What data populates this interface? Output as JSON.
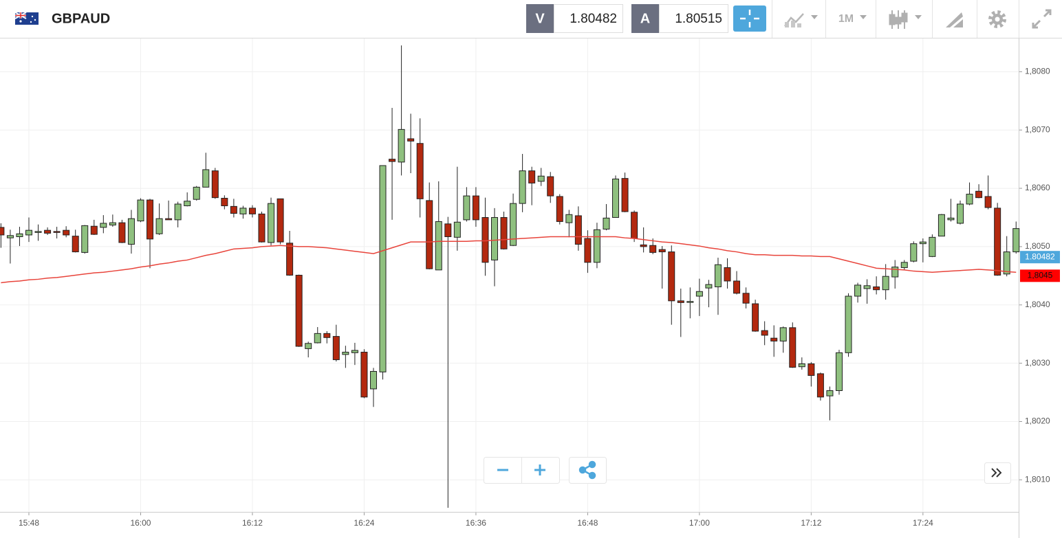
{
  "toolbar": {
    "symbol": "GBPAUD",
    "bid_tag": "V",
    "bid": 1.80482,
    "ask_tag": "A",
    "ask": 1.80515,
    "timeframe": "1M"
  },
  "chart_data": {
    "type": "candlestick",
    "up_color": "#8fc07f",
    "down_color": "#b3290f",
    "categories": [
      null,
      null,
      null,
      "15:48",
      null,
      null,
      null,
      null,
      null,
      null,
      null,
      null,
      null,
      null,
      null,
      "16:00",
      null,
      null,
      null,
      null,
      null,
      null,
      null,
      null,
      null,
      null,
      null,
      "16:12",
      null,
      null,
      null,
      null,
      null,
      null,
      null,
      null,
      null,
      null,
      null,
      "16:24",
      null,
      null,
      null,
      null,
      null,
      null,
      null,
      null,
      null,
      null,
      null,
      "16:36",
      null,
      null,
      null,
      null,
      null,
      null,
      null,
      null,
      null,
      null,
      null,
      "16:48",
      null,
      null,
      null,
      null,
      null,
      null,
      null,
      null,
      null,
      null,
      null,
      "17:00",
      null,
      null,
      null,
      null,
      null,
      null,
      null,
      null,
      null,
      null,
      null,
      "17:12",
      null,
      null,
      null,
      null,
      null,
      null,
      null,
      null,
      null,
      null,
      null,
      "17:24",
      null,
      null,
      null,
      null,
      null,
      null,
      null,
      null,
      null,
      null
    ],
    "open": [
      1.80533,
      1.80515,
      1.80517,
      1.8052,
      1.80525,
      1.80528,
      1.80526,
      1.80528,
      1.80518,
      1.8049,
      1.80535,
      1.80533,
      1.80537,
      1.80541,
      1.80504,
      1.80544,
      1.8058,
      1.80522,
      1.80548,
      1.80546,
      1.8057,
      1.80581,
      1.80602,
      1.8063,
      1.80583,
      1.80569,
      1.80556,
      1.80566,
      1.80556,
      1.80507,
      1.80582,
      1.80506,
      1.80451,
      1.80325,
      1.80335,
      1.80351,
      1.80346,
      1.80315,
      1.80318,
      1.80319,
      1.80256,
      1.80285,
      1.8065,
      1.80645,
      1.80685,
      1.80677,
      1.80579,
      1.8046,
      1.80539,
      1.80516,
      1.80546,
      1.80587,
      1.8055,
      1.80477,
      1.8055,
      1.80502,
      1.80574,
      1.8063,
      1.80612,
      1.8062,
      1.80586,
      1.80541,
      1.80553,
      1.80514,
      1.80473,
      1.8053,
      1.8055,
      1.80617,
      1.80559,
      1.80503,
      1.80502,
      1.80495,
      1.80491,
      1.80407,
      1.80405,
      1.80415,
      1.80429,
      1.80431,
      1.80464,
      1.80441,
      1.8042,
      1.80402,
      1.80356,
      1.80343,
      1.80338,
      1.80361,
      1.80294,
      1.80299,
      1.80282,
      1.80244,
      1.80253,
      1.80318,
      1.80415,
      1.80428,
      1.80431,
      1.80426,
      1.80448,
      1.80464,
      1.80475,
      1.80505,
      1.80483,
      1.80518,
      1.80546,
      1.8054,
      1.80573,
      1.80595,
      1.80586,
      1.80566,
      1.80453,
      1.80491
    ],
    "high": [
      1.8054,
      1.80529,
      1.80534,
      1.8055,
      1.80538,
      1.80533,
      1.80534,
      1.80535,
      1.80529,
      1.80537,
      1.80546,
      1.80554,
      1.80555,
      1.80546,
      1.80563,
      1.80583,
      1.80582,
      1.80574,
      1.80579,
      1.80577,
      1.80593,
      1.80604,
      1.80661,
      1.80635,
      1.80588,
      1.80582,
      1.8057,
      1.80571,
      1.8056,
      1.80584,
      1.80582,
      1.80527,
      1.80452,
      1.80337,
      1.80362,
      1.80355,
      1.80366,
      1.8033,
      1.80335,
      1.80324,
      1.80292,
      1.80639,
      1.80738,
      1.80845,
      1.80728,
      1.8072,
      1.8061,
      1.80612,
      1.80551,
      1.80637,
      1.80602,
      1.80602,
      1.80584,
      1.80566,
      1.8056,
      1.80591,
      1.80659,
      1.80637,
      1.80635,
      1.80628,
      1.8059,
      1.80563,
      1.80569,
      1.80528,
      1.80541,
      1.80573,
      1.80622,
      1.80627,
      1.80562,
      1.80533,
      1.80514,
      1.80501,
      1.80502,
      1.80428,
      1.8043,
      1.80445,
      1.80443,
      1.80481,
      1.8048,
      1.80458,
      1.8043,
      1.80409,
      1.80372,
      1.80365,
      1.80363,
      1.8037,
      1.8031,
      1.80302,
      1.80284,
      1.8026,
      1.80323,
      1.8042,
      1.80438,
      1.80444,
      1.80449,
      1.8047,
      1.80477,
      1.80477,
      1.80509,
      1.80514,
      1.80521,
      1.80556,
      1.80582,
      1.80579,
      1.8061,
      1.80607,
      1.80622,
      1.80575,
      1.80518,
      1.80543
    ],
    "low": [
      1.80498,
      1.80471,
      1.80501,
      1.80508,
      1.8051,
      1.8052,
      1.80514,
      1.80516,
      1.8049,
      1.80488,
      1.8052,
      1.80523,
      1.80534,
      1.80506,
      1.80488,
      1.80542,
      1.80463,
      1.8052,
      1.80546,
      1.80533,
      1.80569,
      1.80579,
      1.80602,
      1.80582,
      1.80564,
      1.8055,
      1.80548,
      1.8055,
      1.80507,
      1.80502,
      1.80504,
      1.8045,
      1.80328,
      1.8031,
      1.80334,
      1.80334,
      1.80303,
      1.80292,
      1.80297,
      1.8024,
      1.80225,
      1.80272,
      1.80546,
      1.80622,
      1.80626,
      1.8055,
      1.80461,
      1.8046,
      1.80052,
      1.80493,
      1.80543,
      1.80534,
      1.8045,
      1.80432,
      1.80495,
      1.80501,
      1.80559,
      1.80571,
      1.80604,
      1.80575,
      1.80538,
      1.80516,
      1.80493,
      1.80455,
      1.80463,
      1.80528,
      1.8055,
      1.80559,
      1.80508,
      1.8049,
      1.80487,
      1.80428,
      1.80366,
      1.80345,
      1.80377,
      1.80381,
      1.80396,
      1.80383,
      1.80428,
      1.80418,
      1.80394,
      1.80354,
      1.80331,
      1.80311,
      1.80318,
      1.80292,
      1.80289,
      1.8026,
      1.80236,
      1.80202,
      1.80246,
      1.80311,
      1.80404,
      1.80402,
      1.80418,
      1.80409,
      1.80428,
      1.8046,
      1.80473,
      1.80473,
      1.80482,
      1.80518,
      1.80543,
      1.80538,
      1.80571,
      1.80583,
      1.80564,
      1.8045,
      1.80449,
      1.80488
    ],
    "close": [
      1.8052,
      1.80519,
      1.80522,
      1.80528,
      1.80526,
      1.80523,
      1.80525,
      1.8052,
      1.80491,
      1.80536,
      1.80521,
      1.8054,
      1.80541,
      1.80507,
      1.80548,
      1.8058,
      1.80513,
      1.80548,
      1.80546,
      1.80573,
      1.80578,
      1.80602,
      1.80632,
      1.80584,
      1.8057,
      1.80557,
      1.80566,
      1.80556,
      1.80508,
      1.80574,
      1.80508,
      1.80451,
      1.80329,
      1.80334,
      1.80351,
      1.80344,
      1.80306,
      1.80319,
      1.80322,
      1.80242,
      1.80286,
      1.80639,
      1.80646,
      1.80701,
      1.80681,
      1.80582,
      1.80462,
      1.80543,
      1.80517,
      1.80542,
      1.80587,
      1.80546,
      1.80473,
      1.8055,
      1.80496,
      1.80574,
      1.8063,
      1.80609,
      1.80621,
      1.80587,
      1.80543,
      1.80555,
      1.80504,
      1.80473,
      1.80529,
      1.80549,
      1.80616,
      1.8056,
      1.80514,
      1.805,
      1.8049,
      1.80491,
      1.80407,
      1.80404,
      1.80406,
      1.80423,
      1.80435,
      1.80469,
      1.80441,
      1.8042,
      1.80403,
      1.80355,
      1.80348,
      1.80338,
      1.80361,
      1.80293,
      1.80299,
      1.80279,
      1.80242,
      1.80253,
      1.80318,
      1.80415,
      1.80434,
      1.80433,
      1.80426,
      1.80449,
      1.80465,
      1.80473,
      1.80505,
      1.80508,
      1.80516,
      1.80555,
      1.80549,
      1.80573,
      1.8059,
      1.80584,
      1.80567,
      1.80451,
      1.80491,
      1.80531
    ],
    "line": {
      "color": "#e8433a",
      "values": [
        1.80438,
        1.8044,
        1.80441,
        1.80443,
        1.80444,
        1.80446,
        1.80447,
        1.80449,
        1.80451,
        1.80453,
        1.80455,
        1.80456,
        1.80458,
        1.8046,
        1.80462,
        1.80465,
        1.80467,
        1.8047,
        1.80472,
        1.80475,
        1.80477,
        1.80481,
        1.80485,
        1.80488,
        1.80492,
        1.80496,
        1.80497,
        1.80498,
        1.805,
        1.80501,
        1.80502,
        1.80501,
        1.805,
        1.805,
        1.80499,
        1.80498,
        1.80496,
        1.80494,
        1.80492,
        1.8049,
        1.80488,
        1.80493,
        1.80498,
        1.80503,
        1.80508,
        1.80508,
        1.80508,
        1.80509,
        1.80509,
        1.80509,
        1.80509,
        1.8051,
        1.8051,
        1.80511,
        1.80512,
        1.80513,
        1.80514,
        1.80515,
        1.80516,
        1.80517,
        1.80517,
        1.80517,
        1.80517,
        1.80517,
        1.80517,
        1.80517,
        1.80517,
        1.80515,
        1.80514,
        1.80512,
        1.8051,
        1.80508,
        1.80507,
        1.80505,
        1.80503,
        1.80501,
        1.80498,
        1.80496,
        1.80493,
        1.80491,
        1.80488,
        1.80486,
        1.80486,
        1.80485,
        1.80485,
        1.80485,
        1.80484,
        1.80484,
        1.80483,
        1.80483,
        1.80479,
        1.80475,
        1.80471,
        1.80467,
        1.80463,
        1.80462,
        1.80461,
        1.8046,
        1.80458,
        1.80457,
        1.80456,
        1.80457,
        1.80458,
        1.80459,
        1.8046,
        1.80461,
        1.8046,
        1.80459,
        1.80457,
        1.80456
      ]
    },
    "ylim": [
      1.80045,
      1.80857
    ],
    "yticks": [
      {
        "value": 1.801,
        "label": "1,8010"
      },
      {
        "value": 1.802,
        "label": "1,8020"
      },
      {
        "value": 1.803,
        "label": "1,8030"
      },
      {
        "value": 1.804,
        "label": "1,8040"
      },
      {
        "value": 1.805,
        "label": "1,8050"
      },
      {
        "value": 1.806,
        "label": "1,8060"
      },
      {
        "value": 1.807,
        "label": "1,8070"
      },
      {
        "value": 1.808,
        "label": "1,8080"
      }
    ],
    "grid": true,
    "price_tags": [
      {
        "value": 1.80482,
        "label": "1.80482",
        "color": "#4ea7dc"
      },
      {
        "value": 1.8045,
        "label": "1,8045",
        "color": "#ff0000"
      }
    ]
  }
}
